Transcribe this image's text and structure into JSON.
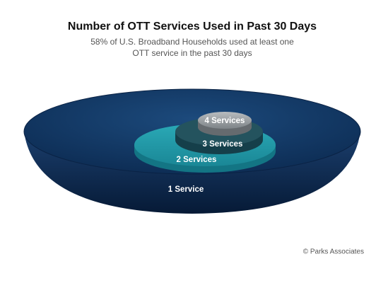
{
  "header": {
    "title": "Number of OTT Services Used in Past 30 Days",
    "subtitle": [
      "58% of U.S. Broadband Households used at least one",
      "OTT service in the past 30 days"
    ]
  },
  "layers": [
    {
      "label": "1 Service"
    },
    {
      "label": "2 Services"
    },
    {
      "label": "3 Services"
    },
    {
      "label": "4 Services"
    }
  ],
  "credit": "© Parks Associates"
}
